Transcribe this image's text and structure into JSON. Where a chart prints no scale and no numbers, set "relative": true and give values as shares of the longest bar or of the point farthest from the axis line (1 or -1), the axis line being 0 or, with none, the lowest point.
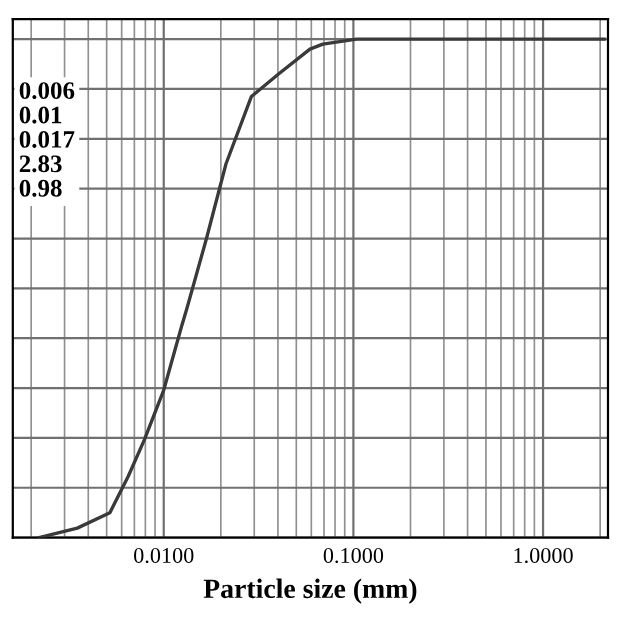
{
  "chart_data": {
    "type": "line",
    "xlabel": "Particle size (mm)",
    "relative": true,
    "log": "x",
    "xlim": [
      0.0016,
      2.2
    ],
    "xticks": [
      {
        "value": 0.01,
        "label": "0.0100"
      },
      {
        "value": 0.1,
        "label": "0.1000"
      },
      {
        "value": 1,
        "label": "1.0000"
      }
    ],
    "grid": true,
    "tick_labels": "x",
    "line_style": "solid",
    "marker": "none",
    "annotations": [
      "0.006",
      "0.01",
      "0.017",
      "2.83",
      "0.98"
    ],
    "series": [
      {
        "color": "#3a3a3a",
        "x": [
          0.0022,
          0.0035,
          0.0052,
          0.0065,
          0.0079,
          0.01,
          0.0124,
          0.0133,
          0.0168,
          0.0213,
          0.029,
          0.0403,
          0.059,
          0.069,
          0.104,
          0.3,
          1.0,
          2.1
        ],
        "values": [
          0,
          0.019,
          0.05,
          0.123,
          0.196,
          0.296,
          0.423,
          0.462,
          0.6,
          0.75,
          0.885,
          0.93,
          0.98,
          0.99,
          1,
          1,
          1,
          1
        ]
      }
    ]
  }
}
